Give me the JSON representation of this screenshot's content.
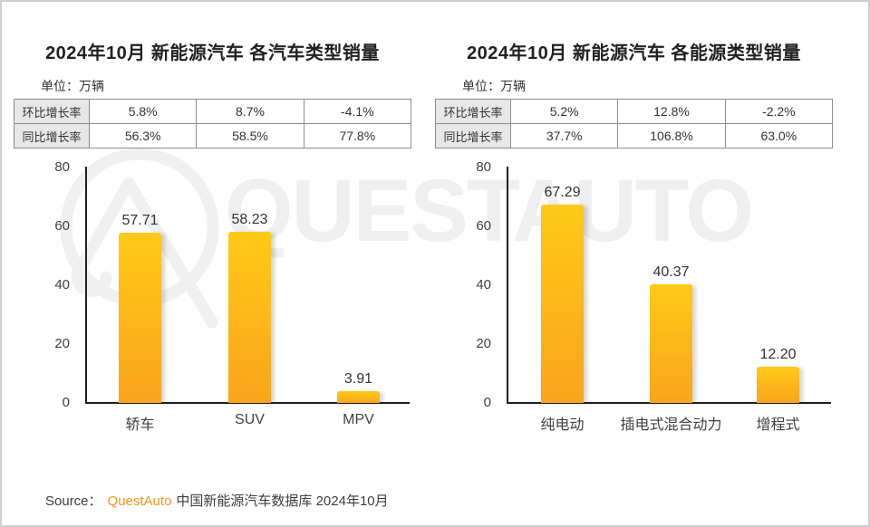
{
  "watermark": {
    "text": "QUESTAUTO"
  },
  "chart_data": [
    {
      "type": "bar",
      "title": "2024年10月 新能源汽车 各汽车类型销量",
      "unit_label": "单位：万辆",
      "categories": [
        "轿车",
        "SUV",
        "MPV"
      ],
      "values": [
        57.71,
        58.23,
        3.91
      ],
      "value_labels": [
        "57.71",
        "58.23",
        "3.91"
      ],
      "ylim": [
        0,
        80
      ],
      "yticks": [
        "80",
        "60",
        "40",
        "20",
        "0"
      ],
      "grid": false,
      "legend": "none",
      "bar_color_top": "#ffc917",
      "bar_color_bottom": "#f9a51c",
      "growth_table": {
        "row_labels": [
          "环比增长率",
          "同比增长率"
        ],
        "rows": [
          [
            "5.8%",
            "8.7%",
            "-4.1%"
          ],
          [
            "56.3%",
            "58.5%",
            "77.8%"
          ]
        ]
      }
    },
    {
      "type": "bar",
      "title": "2024年10月 新能源汽车 各能源类型销量",
      "unit_label": "单位：万辆",
      "categories": [
        "纯电动",
        "插电式混合动力",
        "增程式"
      ],
      "values": [
        67.29,
        40.37,
        12.2
      ],
      "value_labels": [
        "67.29",
        "40.37",
        "12.20"
      ],
      "ylim": [
        0,
        80
      ],
      "yticks": [
        "80",
        "60",
        "40",
        "20",
        "0"
      ],
      "grid": false,
      "legend": "none",
      "bar_color_top": "#ffc917",
      "bar_color_bottom": "#f9a51c",
      "growth_table": {
        "row_labels": [
          "环比增长率",
          "同比增长率"
        ],
        "rows": [
          [
            "5.2%",
            "12.8%",
            "-2.2%"
          ],
          [
            "37.7%",
            "106.8%",
            "63.0%"
          ]
        ]
      }
    }
  ],
  "source": {
    "prefix": "Source：",
    "brand": "QuestAuto",
    "suffix": "中国新能源汽车数据库 2024年10月"
  }
}
